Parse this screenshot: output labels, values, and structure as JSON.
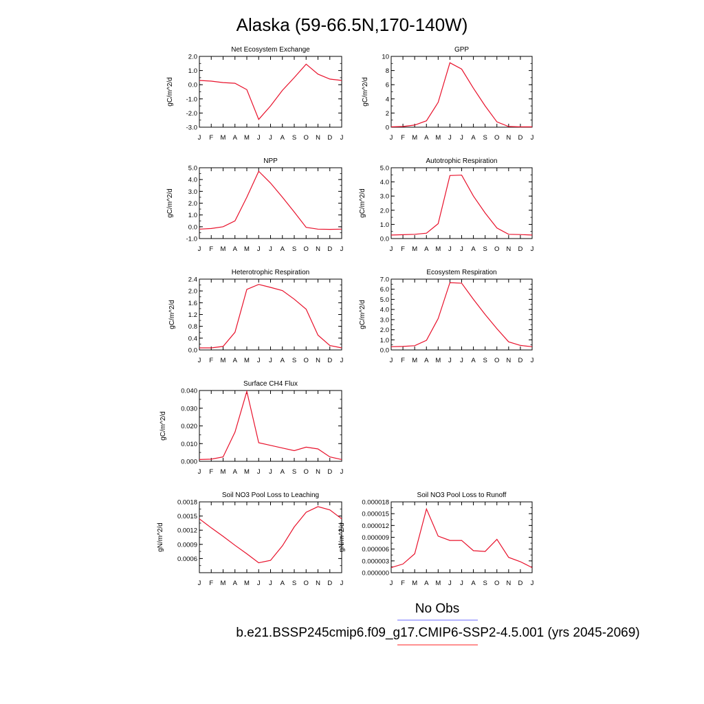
{
  "figure": {
    "title": "Alaska (59-66.5N,170-140W)",
    "legend": [
      {
        "label": "No Obs",
        "color": "#6b6bff"
      },
      {
        "label": "b.e21.BSSP245cmip6.f09_g17.CMIP6-SSP2-4.5.001 (yrs 2045-2069)",
        "color": "#ff2020"
      }
    ]
  },
  "chart_data": [
    {
      "type": "line",
      "title": "Net Ecosystem Exchange",
      "ylabel": "gC/m^2/d",
      "categories": [
        "J",
        "F",
        "M",
        "A",
        "M",
        "J",
        "J",
        "A",
        "S",
        "O",
        "N",
        "D",
        "J"
      ],
      "ylim": [
        -3.0,
        2.0
      ],
      "yticks": [
        "2.0",
        "1.0",
        "0.0",
        "-1.0",
        "-2.0",
        "-3.0"
      ],
      "series": [
        {
          "color": "#e8102a",
          "values": [
            0.3,
            0.25,
            0.15,
            0.1,
            -0.35,
            -2.45,
            -1.5,
            -0.4,
            0.5,
            1.45,
            0.75,
            0.4,
            0.3
          ]
        }
      ]
    },
    {
      "type": "line",
      "title": "GPP",
      "ylabel": "gC/m^2/d",
      "categories": [
        "J",
        "F",
        "M",
        "A",
        "M",
        "J",
        "J",
        "A",
        "S",
        "O",
        "N",
        "D",
        "J"
      ],
      "ylim": [
        0,
        10
      ],
      "yticks": [
        "10",
        "8",
        "6",
        "4",
        "2",
        "0"
      ],
      "series": [
        {
          "color": "#e8102a",
          "values": [
            0.05,
            0.1,
            0.3,
            0.9,
            3.5,
            9.1,
            8.2,
            5.5,
            3.0,
            0.75,
            0.1,
            0.05,
            0.05
          ]
        }
      ]
    },
    {
      "type": "line",
      "title": "NPP",
      "ylabel": "gC/m^2/d",
      "categories": [
        "J",
        "F",
        "M",
        "A",
        "M",
        "J",
        "J",
        "A",
        "S",
        "O",
        "N",
        "D",
        "J"
      ],
      "ylim": [
        -1.0,
        5.0
      ],
      "yticks": [
        "5.0",
        "4.0",
        "3.0",
        "2.0",
        "1.0",
        "0.0",
        "-1.0"
      ],
      "series": [
        {
          "color": "#e8102a",
          "values": [
            -0.2,
            -0.15,
            0.0,
            0.5,
            2.5,
            4.7,
            3.7,
            2.5,
            1.25,
            -0.05,
            -0.2,
            -0.22,
            -0.2
          ]
        }
      ]
    },
    {
      "type": "line",
      "title": "Autotrophic Respiration",
      "ylabel": "gC/m^2/d",
      "categories": [
        "J",
        "F",
        "M",
        "A",
        "M",
        "J",
        "J",
        "A",
        "S",
        "O",
        "N",
        "D",
        "J"
      ],
      "ylim": [
        0,
        5.0
      ],
      "yticks": [
        "5.0",
        "4.0",
        "3.0",
        "2.0",
        "1.0",
        "0.0"
      ],
      "series": [
        {
          "color": "#e8102a",
          "values": [
            0.25,
            0.27,
            0.3,
            0.38,
            1.05,
            4.45,
            4.48,
            3.0,
            1.8,
            0.75,
            0.3,
            0.28,
            0.25
          ]
        }
      ]
    },
    {
      "type": "line",
      "title": "Heterotrophic Respiration",
      "ylabel": "gC/m^2/d",
      "categories": [
        "J",
        "F",
        "M",
        "A",
        "M",
        "J",
        "J",
        "A",
        "S",
        "O",
        "N",
        "D",
        "J"
      ],
      "ylim": [
        0,
        2.4
      ],
      "yticks": [
        "2.4",
        "2.0",
        "1.6",
        "1.2",
        "0.8",
        "0.4",
        "0.0"
      ],
      "series": [
        {
          "color": "#e8102a",
          "values": [
            0.07,
            0.07,
            0.12,
            0.6,
            2.05,
            2.22,
            2.12,
            2.01,
            1.72,
            1.38,
            0.5,
            0.15,
            0.07
          ]
        }
      ]
    },
    {
      "type": "line",
      "title": "Ecosystem Respiration",
      "ylabel": "gC/m^2/d",
      "categories": [
        "J",
        "F",
        "M",
        "A",
        "M",
        "J",
        "J",
        "A",
        "S",
        "O",
        "N",
        "D",
        "J"
      ],
      "ylim": [
        0,
        7.0
      ],
      "yticks": [
        "7.0",
        "6.0",
        "5.0",
        "4.0",
        "3.0",
        "2.0",
        "1.0",
        "0.0"
      ],
      "series": [
        {
          "color": "#e8102a",
          "values": [
            0.32,
            0.35,
            0.42,
            0.95,
            3.1,
            6.65,
            6.6,
            5.0,
            3.5,
            2.1,
            0.8,
            0.45,
            0.32
          ]
        }
      ]
    },
    {
      "type": "line",
      "title": "Surface CH4 Flux",
      "ylabel": "gC/m^2/d",
      "categories": [
        "J",
        "F",
        "M",
        "A",
        "M",
        "J",
        "J",
        "A",
        "S",
        "O",
        "N",
        "D",
        "J"
      ],
      "ylim": [
        0,
        0.04
      ],
      "yticks": [
        "0.040",
        "0.030",
        "0.020",
        "0.010",
        "0.000"
      ],
      "series": [
        {
          "color": "#e8102a",
          "values": [
            0.001,
            0.0012,
            0.0025,
            0.0165,
            0.0395,
            0.0105,
            0.009,
            0.0075,
            0.006,
            0.008,
            0.007,
            0.0025,
            0.001
          ]
        }
      ]
    },
    {
      "type": "line",
      "title": "Soil NO3 Pool Loss to Leaching",
      "ylabel": "gN/m^2/d",
      "categories": [
        "J",
        "F",
        "M",
        "A",
        "M",
        "J",
        "J",
        "A",
        "S",
        "O",
        "N",
        "D",
        "J"
      ],
      "ylim": [
        0.0003,
        0.0018
      ],
      "yticks": [
        "0.0018",
        "0.0015",
        "0.0012",
        "0.0009",
        "0.0006"
      ],
      "series": [
        {
          "color": "#e8102a",
          "values": [
            0.00144,
            0.00125,
            0.00107,
            0.00088,
            0.0007,
            0.00051,
            0.00056,
            0.00087,
            0.00127,
            0.00158,
            0.0017,
            0.00163,
            0.00144
          ]
        }
      ]
    },
    {
      "type": "line",
      "title": "Soil NO3 Pool Loss to Runoff",
      "ylabel": "gN/m^2/d",
      "categories": [
        "J",
        "F",
        "M",
        "A",
        "M",
        "J",
        "J",
        "A",
        "S",
        "O",
        "N",
        "D",
        "J"
      ],
      "ylim": [
        0,
        1.8e-05
      ],
      "yticks": [
        "0.000018",
        "0.000015",
        "0.000012",
        "0.000009",
        "0.000006",
        "0.000003",
        "0.000000"
      ],
      "series": [
        {
          "color": "#e8102a",
          "values": [
            1.3e-06,
            2.2e-06,
            4.8e-06,
            1.62e-05,
            9.3e-06,
            8.2e-06,
            8.2e-06,
            5.6e-06,
            5.4e-06,
            8.5e-06,
            3.9e-06,
            2.8e-06,
            1.3e-06
          ]
        }
      ]
    }
  ]
}
